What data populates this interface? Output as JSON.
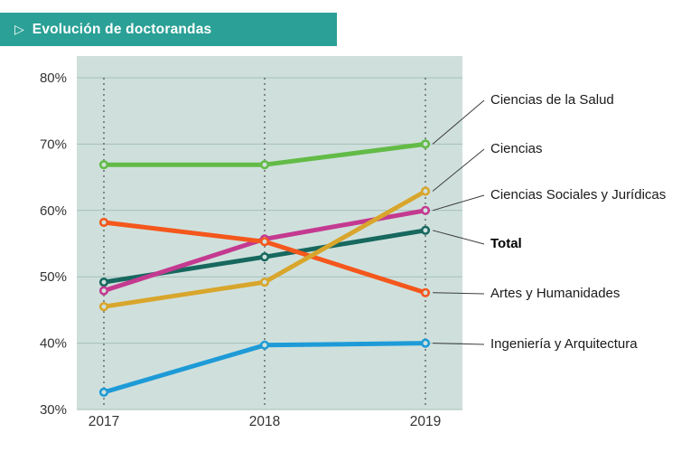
{
  "header": {
    "title": "Evolución de doctorandas"
  },
  "palette": {
    "header_bg": "#2aa096",
    "header_text": "#ffffff",
    "plot_bg": "#cfe0dc",
    "grid_line": "#a6beb9",
    "dash_line": "#4d4d4d",
    "axis_text": "#333333",
    "leader_line": "#3c3c3c",
    "label_text": "#1a1a1a"
  },
  "chart_data": {
    "type": "line",
    "title": "Evolución de doctorandas",
    "x": [
      2017,
      2018,
      2019
    ],
    "ylim": [
      30,
      80
    ],
    "yticks": [
      30,
      40,
      50,
      60,
      70,
      80
    ],
    "ytick_suffix": "%",
    "grid": true,
    "legend_position": "right-annotations",
    "series": [
      {
        "id": "ciencias-salud",
        "name": "Ciencias de la Salud",
        "color": "#62bb46",
        "values": [
          66.9,
          66.9,
          70.0
        ],
        "bold": false
      },
      {
        "id": "ciencias",
        "name": "Ciencias",
        "color": "#d8a62c",
        "values": [
          45.5,
          49.2,
          62.9
        ],
        "bold": false
      },
      {
        "id": "sociales-juridicas",
        "name": "Ciencias Sociales y Jurídicas",
        "color": "#c43a90",
        "values": [
          47.9,
          55.7,
          60.0
        ],
        "bold": false
      },
      {
        "id": "total",
        "name": "Total",
        "color": "#17685f",
        "values": [
          49.2,
          53.0,
          57.0
        ],
        "bold": true
      },
      {
        "id": "artes-humanidades",
        "name": "Artes y Humanidades",
        "color": "#f4571c",
        "values": [
          58.2,
          55.3,
          47.6
        ],
        "bold": false
      },
      {
        "id": "ingenieria-arquitectura",
        "name": "Ingeniería y Arquitectura",
        "color": "#1e9bd7",
        "values": [
          32.6,
          39.7,
          40.0
        ],
        "bold": false
      }
    ]
  }
}
